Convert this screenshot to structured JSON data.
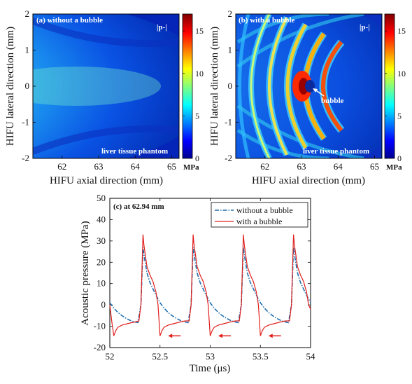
{
  "chart_data": [
    {
      "type": "heatmap",
      "panel_label": "(a) without a bubble",
      "quantity_label": "|p-|",
      "annotation": "liver tissue phantom",
      "xlabel": "HIFU axial direction (mm)",
      "ylabel": "HIFU lateral direction (mm)",
      "xlim": [
        61.2,
        65.2
      ],
      "ylim": [
        -2,
        2
      ],
      "xticks": [
        62,
        63,
        64,
        65
      ],
      "yticks": [
        2,
        1,
        0,
        -1,
        -2
      ],
      "colorbar": {
        "range": [
          0,
          17
        ],
        "ticks": [
          0,
          5,
          10,
          15
        ],
        "unit": "MPa",
        "colormap": "jet"
      }
    },
    {
      "type": "heatmap",
      "panel_label": "(b) with a bubble",
      "quantity_label": "|p-|",
      "annotation": "liver tissue phantom",
      "bubble_label": "bubble",
      "bubble_position": {
        "x_mm": 63.0,
        "y_mm": 0
      },
      "xlabel": "HIFU axial direction (mm)",
      "ylabel": "HIFU lateral direction (mm)",
      "xlim": [
        61.2,
        65.2
      ],
      "ylim": [
        -2,
        2
      ],
      "xticks": [
        62,
        63,
        64,
        65
      ],
      "yticks": [
        2,
        1,
        0,
        -1,
        -2
      ],
      "colorbar": {
        "range": [
          0,
          17
        ],
        "ticks": [
          0,
          5,
          10,
          15
        ],
        "unit": "MPa",
        "colormap": "jet"
      }
    },
    {
      "type": "line",
      "panel_label": "(c) at 62.94 mm",
      "xlabel": "Time (μs)",
      "ylabel": "Acoustic pressure (MPa)",
      "xlim": [
        52,
        54
      ],
      "ylim": [
        -20,
        50
      ],
      "xticks": [
        52,
        52.5,
        53,
        53.5,
        54
      ],
      "yticks": [
        50,
        40,
        30,
        20,
        10,
        0,
        -10,
        -20
      ],
      "legend_position": "top-right",
      "series": [
        {
          "name": "without a bubble",
          "color": "#1f6fb0",
          "style": "dash-dot",
          "x": [
            52.0,
            52.04,
            52.08,
            52.12,
            52.16,
            52.2,
            52.24,
            52.28,
            52.31,
            52.33,
            52.345,
            52.37,
            52.4,
            52.45,
            52.5,
            52.54,
            52.58,
            52.62,
            52.66,
            52.7,
            52.74,
            52.78,
            52.81,
            52.83,
            52.845,
            52.87,
            52.9,
            52.95,
            53.0,
            53.04,
            53.08,
            53.12,
            53.16,
            53.2,
            53.24,
            53.28,
            53.31,
            53.33,
            53.345,
            53.37,
            53.4,
            53.45,
            53.5,
            53.54,
            53.58,
            53.62,
            53.66,
            53.7,
            53.74,
            53.78,
            53.81,
            53.83,
            53.845,
            53.87,
            53.9,
            53.95,
            54.0
          ],
          "y": [
            1,
            -1.5,
            -3.5,
            -5,
            -6.2,
            -7.2,
            -7.9,
            -8.3,
            0,
            27,
            22,
            15,
            10.5,
            5.5,
            1,
            -1.5,
            -3.5,
            -5,
            -6.2,
            -7.2,
            -7.9,
            -8.3,
            0,
            27,
            22,
            15,
            10.5,
            5.5,
            1,
            -1.5,
            -3.5,
            -5,
            -6.2,
            -7.2,
            -7.9,
            -8.3,
            0,
            27,
            22,
            15,
            10.5,
            5.5,
            1,
            -1.5,
            -3.5,
            -5,
            -6.2,
            -7.2,
            -7.9,
            -8.3,
            0,
            27,
            22,
            15,
            10.5,
            5.5,
            1
          ]
        },
        {
          "name": "with a bubble",
          "color": "#e0201c",
          "style": "solid",
          "x": [
            52.0,
            52.02,
            52.04,
            52.06,
            52.08,
            52.12,
            52.16,
            52.2,
            52.25,
            52.29,
            52.31,
            52.33,
            52.34,
            52.37,
            52.4,
            52.43,
            52.46,
            52.48,
            52.5,
            52.52,
            52.54,
            52.58,
            52.62,
            52.66,
            52.7,
            52.75,
            52.79,
            52.81,
            52.83,
            52.84,
            52.87,
            52.9,
            52.93,
            52.96,
            52.98,
            53.0,
            53.02,
            53.04,
            53.08,
            53.12,
            53.16,
            53.2,
            53.25,
            53.29,
            53.31,
            53.33,
            53.34,
            53.37,
            53.4,
            53.43,
            53.46,
            53.48,
            53.5,
            53.52,
            53.54,
            53.58,
            53.62,
            53.66,
            53.7,
            53.75,
            53.79,
            53.81,
            53.83,
            53.84,
            53.87,
            53.9,
            53.93,
            53.96,
            53.98,
            54.0
          ],
          "y": [
            0,
            -8,
            -14.5,
            -12,
            -10.5,
            -9.5,
            -9,
            -8.5,
            -8,
            -7.5,
            0,
            33,
            28,
            18,
            14,
            11,
            6,
            0,
            -14.5,
            -12,
            -10.5,
            -9.5,
            -9,
            -8.5,
            -8,
            -7.5,
            -7.5,
            0,
            33,
            28,
            18,
            14,
            11,
            6,
            0,
            -14.5,
            -12,
            -10.5,
            -9.5,
            -9,
            -8.5,
            -8,
            -7.5,
            -7.5,
            0,
            33,
            28,
            18,
            14,
            11,
            6,
            0,
            -14.5,
            -12,
            -10.5,
            -9.5,
            -9,
            -8.5,
            -8,
            -7.5,
            -7.5,
            0,
            33,
            28,
            18,
            14,
            11,
            6,
            0,
            -2
          ]
        }
      ],
      "arrows_at_x": [
        52.58,
        53.08,
        53.58
      ]
    }
  ]
}
